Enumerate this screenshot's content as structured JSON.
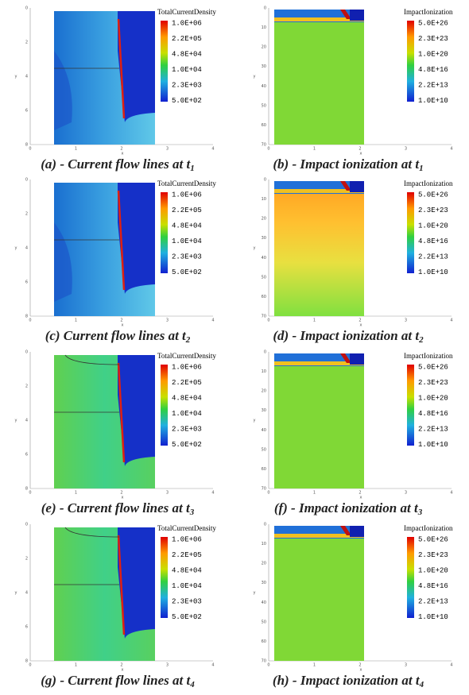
{
  "axes": {
    "left": {
      "x_label": "x",
      "y_label": "y",
      "xticks": [
        "0",
        "1",
        "2",
        "3",
        "4"
      ],
      "yticks": [
        "0",
        "2",
        "4",
        "6",
        "8"
      ]
    },
    "right": {
      "x_label": "x",
      "y_label": "y",
      "xticks": [
        "0",
        "1",
        "2",
        "3",
        "4"
      ],
      "yticks": [
        "0",
        "10",
        "20",
        "30",
        "40",
        "50",
        "60",
        "70"
      ]
    }
  },
  "panels": [
    {
      "axis": "left",
      "style": "blue",
      "legend_title": "TotalCurrentDensity",
      "legend_labels": [
        "1.0E+06",
        "2.2E+05",
        "4.8E+04",
        "1.0E+04",
        "2.3E+03",
        "5.0E+02"
      ],
      "caption": {
        "text": "(a) - Current flow lines at t",
        "sub": "1"
      }
    },
    {
      "axis": "right",
      "style": "lime",
      "legend_title": "ImpactIonization",
      "legend_labels": [
        "5.0E+26",
        "2.3E+23",
        "1.0E+20",
        "4.8E+16",
        "2.2E+13",
        "1.0E+10"
      ],
      "caption": {
        "text": "(b) - Impact ionization at t",
        "sub": "1"
      }
    },
    {
      "axis": "left",
      "style": "blue",
      "legend_title": "TotalCurrentDensity",
      "legend_labels": [
        "1.0E+06",
        "2.2E+05",
        "4.8E+04",
        "1.0E+04",
        "2.3E+03",
        "5.0E+02"
      ],
      "caption": {
        "text": "(c) Current flow lines at t",
        "sub": "2"
      }
    },
    {
      "axis": "right",
      "style": "orange",
      "legend_title": "ImpactIonization",
      "legend_labels": [
        "5.0E+26",
        "2.3E+23",
        "1.0E+20",
        "4.8E+16",
        "2.2E+13",
        "1.0E+10"
      ],
      "caption": {
        "text": "(d) - Impact ionization at t",
        "sub": "2"
      }
    },
    {
      "axis": "left",
      "style": "green",
      "legend_title": "TotalCurrentDensity",
      "legend_labels": [
        "1.0E+06",
        "2.2E+05",
        "4.8E+04",
        "1.0E+04",
        "2.3E+03",
        "5.0E+02"
      ],
      "caption": {
        "text": "(e) - Current flow lines at t",
        "sub": "3"
      }
    },
    {
      "axis": "right",
      "style": "lime",
      "legend_title": "ImpactIonization",
      "legend_labels": [
        "5.0E+26",
        "2.3E+23",
        "1.0E+20",
        "4.8E+16",
        "2.2E+13",
        "1.0E+10"
      ],
      "caption": {
        "text": "(f) - Impact ionization at t",
        "sub": "3"
      }
    },
    {
      "axis": "left",
      "style": "green",
      "legend_title": "TotalCurrentDensity",
      "legend_labels": [
        "1.0E+06",
        "2.2E+05",
        "4.8E+04",
        "1.0E+04",
        "2.3E+03",
        "5.0E+02"
      ],
      "caption": {
        "text": "(g) - Current flow lines at t",
        "sub": "4"
      }
    },
    {
      "axis": "right",
      "style": "lime",
      "legend_title": "ImpactIonization",
      "legend_labels": [
        "5.0E+26",
        "2.3E+23",
        "1.0E+20",
        "4.8E+16",
        "2.2E+13",
        "1.0E+10"
      ],
      "caption": {
        "text": "(h) - Impact ionization at t",
        "sub": "4"
      }
    }
  ]
}
